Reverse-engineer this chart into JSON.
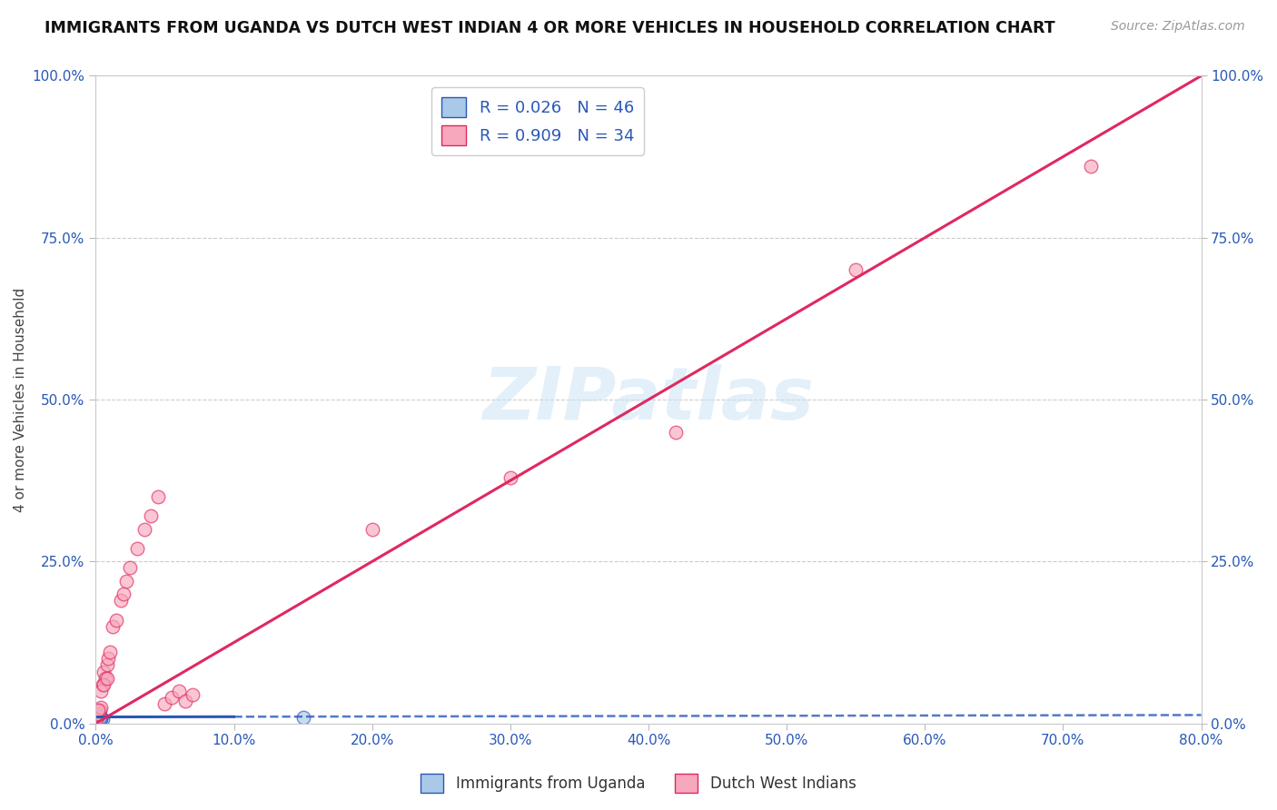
{
  "title": "IMMIGRANTS FROM UGANDA VS DUTCH WEST INDIAN 4 OR MORE VEHICLES IN HOUSEHOLD CORRELATION CHART",
  "source": "Source: ZipAtlas.com",
  "xlabel": "",
  "ylabel": "4 or more Vehicles in Household",
  "legend_label_1": "Immigrants from Uganda",
  "legend_label_2": "Dutch West Indians",
  "R1": 0.026,
  "N1": 46,
  "R2": 0.909,
  "N2": 34,
  "color1": "#aac8e8",
  "color2": "#f8a8bc",
  "line_color1": "#2858b8",
  "line_color2": "#e02860",
  "xlim": [
    0.0,
    0.8
  ],
  "ylim": [
    0.0,
    1.0
  ],
  "xticks": [
    0.0,
    0.1,
    0.2,
    0.3,
    0.4,
    0.5,
    0.6,
    0.7,
    0.8
  ],
  "yticks": [
    0.0,
    0.25,
    0.5,
    0.75,
    1.0
  ],
  "xtick_labels": [
    "0.0%",
    "10.0%",
    "20.0%",
    "30.0%",
    "40.0%",
    "50.0%",
    "60.0%",
    "70.0%",
    "80.0%"
  ],
  "ytick_labels": [
    "0.0%",
    "25.0%",
    "50.0%",
    "75.0%",
    "100.0%"
  ],
  "watermark": "ZIPatlas",
  "uganda_x": [
    0.001,
    0.002,
    0.001,
    0.003,
    0.002,
    0.001,
    0.002,
    0.001,
    0.003,
    0.002,
    0.001,
    0.002,
    0.003,
    0.001,
    0.002,
    0.001,
    0.002,
    0.001,
    0.002,
    0.003,
    0.001,
    0.002,
    0.001,
    0.003,
    0.002,
    0.001,
    0.002,
    0.003,
    0.001,
    0.002,
    0.001,
    0.002,
    0.003,
    0.004,
    0.005,
    0.004,
    0.001,
    0.002,
    0.003,
    0.002,
    0.001,
    0.002,
    0.003,
    0.004,
    0.003,
    0.15
  ],
  "uganda_y": [
    0.005,
    0.008,
    0.01,
    0.012,
    0.007,
    0.004,
    0.009,
    0.003,
    0.011,
    0.006,
    0.008,
    0.01,
    0.007,
    0.005,
    0.009,
    0.006,
    0.004,
    0.007,
    0.008,
    0.01,
    0.005,
    0.009,
    0.006,
    0.011,
    0.008,
    0.004,
    0.007,
    0.009,
    0.005,
    0.008,
    0.012,
    0.006,
    0.01,
    0.008,
    0.007,
    0.009,
    0.006,
    0.008,
    0.005,
    0.01,
    0.007,
    0.009,
    0.006,
    0.008,
    0.01,
    0.009
  ],
  "dutch_x": [
    0.001,
    0.002,
    0.003,
    0.004,
    0.005,
    0.006,
    0.007,
    0.008,
    0.009,
    0.01,
    0.012,
    0.015,
    0.018,
    0.02,
    0.022,
    0.025,
    0.03,
    0.035,
    0.04,
    0.045,
    0.05,
    0.055,
    0.06,
    0.065,
    0.07,
    0.42,
    0.002,
    0.004,
    0.006,
    0.008,
    0.2,
    0.3,
    0.55,
    0.72
  ],
  "dutch_y": [
    0.01,
    0.015,
    0.02,
    0.025,
    0.06,
    0.08,
    0.07,
    0.09,
    0.1,
    0.11,
    0.15,
    0.16,
    0.19,
    0.2,
    0.22,
    0.24,
    0.27,
    0.3,
    0.32,
    0.35,
    0.03,
    0.04,
    0.05,
    0.035,
    0.045,
    0.45,
    0.02,
    0.05,
    0.06,
    0.07,
    0.3,
    0.38,
    0.7,
    0.86
  ],
  "line1_x": [
    0.0,
    0.8
  ],
  "line1_y": [
    0.01,
    0.013
  ],
  "line1_solid_end": 0.1,
  "line2_x": [
    0.0,
    0.8
  ],
  "line2_y": [
    0.0,
    1.0
  ]
}
